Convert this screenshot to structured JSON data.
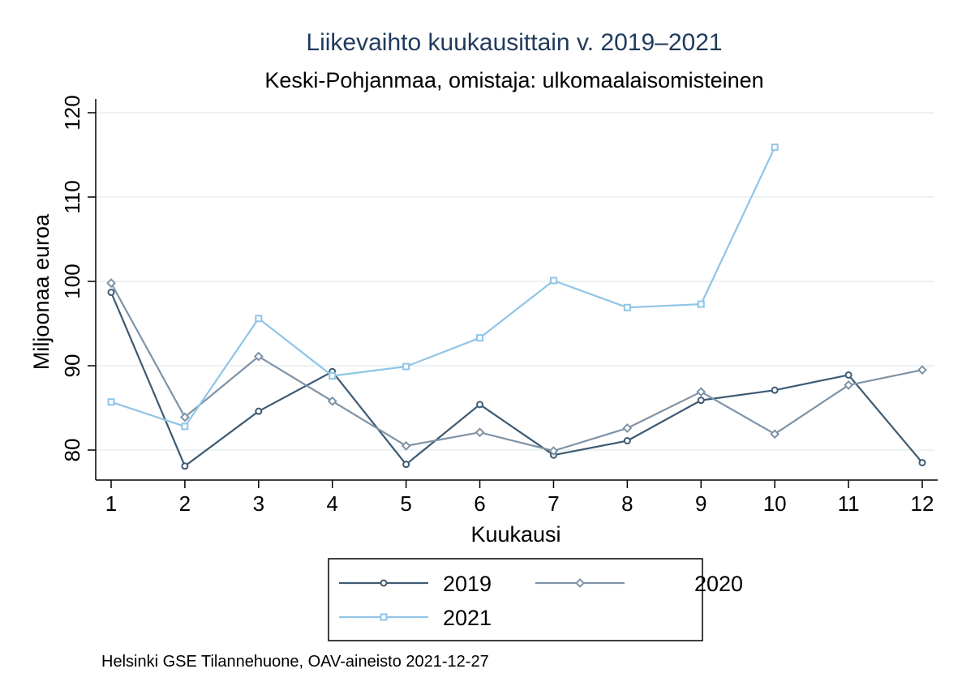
{
  "chart_data": {
    "type": "line",
    "title": "Liikevaihto kuukausittain v. 2019–2021",
    "subtitle": "Keski-Pohjanmaa, omistaja: ulkomaalaisomisteinen",
    "xlabel": "Kuukausi",
    "ylabel": "Miljoonaa euroa",
    "x": [
      1,
      2,
      3,
      4,
      5,
      6,
      7,
      8,
      9,
      10,
      11,
      12
    ],
    "x_ticks": [
      "1",
      "2",
      "3",
      "4",
      "5",
      "6",
      "7",
      "8",
      "9",
      "10",
      "11",
      "12"
    ],
    "y_ticks": [
      "80",
      "90",
      "100",
      "110",
      "120"
    ],
    "xlim": [
      1,
      12
    ],
    "ylim": [
      76.5,
      121.5
    ],
    "grid": true,
    "legend_position": "bottom",
    "series": [
      {
        "name": "2019",
        "marker": "circle",
        "color": "#3e5a72",
        "values": [
          98.7,
          78.1,
          84.6,
          89.3,
          78.3,
          85.4,
          79.4,
          81.1,
          85.9,
          87.1,
          88.9,
          78.5
        ]
      },
      {
        "name": "2020",
        "marker": "diamond",
        "color": "#7f93a6",
        "values": [
          99.8,
          83.9,
          91.1,
          85.8,
          80.5,
          82.1,
          79.9,
          82.6,
          86.9,
          81.9,
          87.7,
          89.5
        ]
      },
      {
        "name": "2021",
        "marker": "square",
        "color": "#8fc5e6",
        "values": [
          85.7,
          82.8,
          95.6,
          88.8,
          89.9,
          93.3,
          100.1,
          96.9,
          97.3,
          115.9,
          null,
          null
        ]
      }
    ],
    "note": "Helsinki GSE Tilannehuone, OAV-aineisto 2021-12-27"
  }
}
